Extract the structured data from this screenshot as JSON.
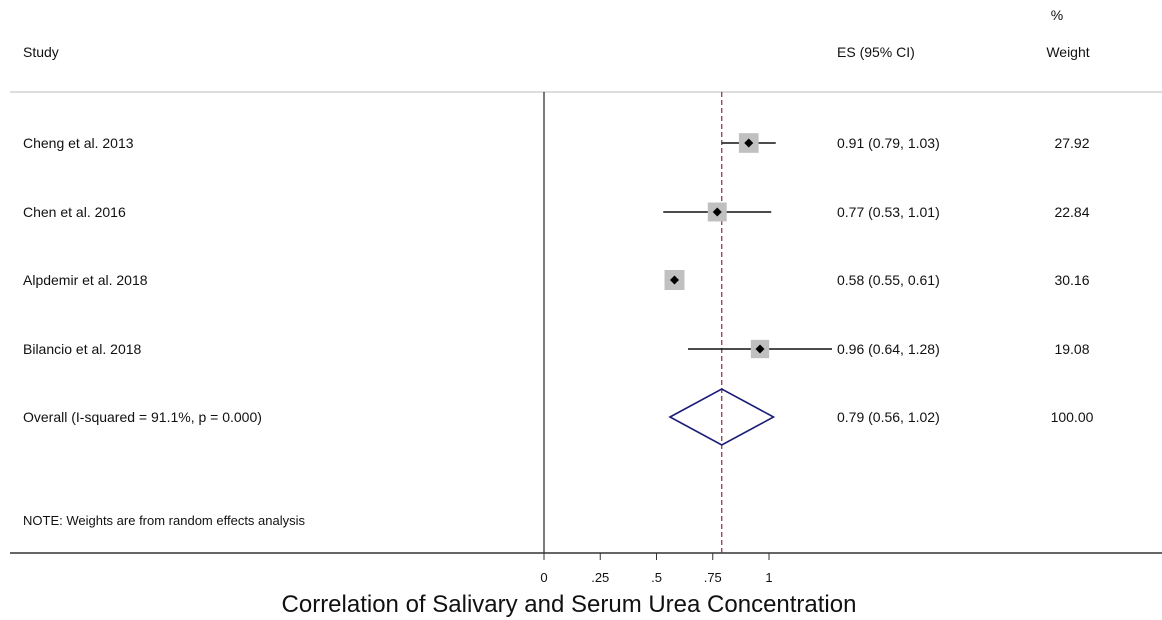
{
  "chart_data": {
    "type": "forest",
    "headers": {
      "study": "Study",
      "es": "ES (95% CI)",
      "weight_top": "%",
      "weight": "Weight"
    },
    "studies": [
      {
        "label": "Cheng et al. 2013",
        "es": 0.91,
        "lo": 0.79,
        "hi": 1.03,
        "es_text": "0.91 (0.79, 1.03)",
        "weight": 27.92,
        "weight_text": "27.92"
      },
      {
        "label": "Chen et al. 2016",
        "es": 0.77,
        "lo": 0.53,
        "hi": 1.01,
        "es_text": "0.77 (0.53, 1.01)",
        "weight": 22.84,
        "weight_text": "22.84"
      },
      {
        "label": "Alpdemir et al. 2018",
        "es": 0.58,
        "lo": 0.55,
        "hi": 0.61,
        "es_text": "0.58 (0.55, 0.61)",
        "weight": 30.16,
        "weight_text": "30.16"
      },
      {
        "label": "Bilancio et al. 2018",
        "es": 0.96,
        "lo": 0.64,
        "hi": 1.28,
        "es_text": "0.96 (0.64, 1.28)",
        "weight": 19.08,
        "weight_text": "19.08"
      }
    ],
    "overall": {
      "label": "Overall  (I-squared = 91.1%, p = 0.000)",
      "es": 0.79,
      "lo": 0.56,
      "hi": 1.02,
      "es_text": "0.79 (0.56, 1.02)",
      "weight_text": "100.00"
    },
    "note": "NOTE: Weights are from random effects analysis",
    "x_ticks": [
      0,
      0.25,
      0.5,
      0.75,
      1
    ],
    "x_tick_labels": [
      "0",
      ".25",
      ".5",
      ".75",
      "1"
    ],
    "xlabel": "Correlation of Salivary and Serum Urea Concentration",
    "null_line": 0,
    "colors": {
      "weight_box": "#c0c0c0",
      "diamond": "#1c1c78",
      "overall_line": "#8b2a3c",
      "axis": "#333333"
    }
  }
}
